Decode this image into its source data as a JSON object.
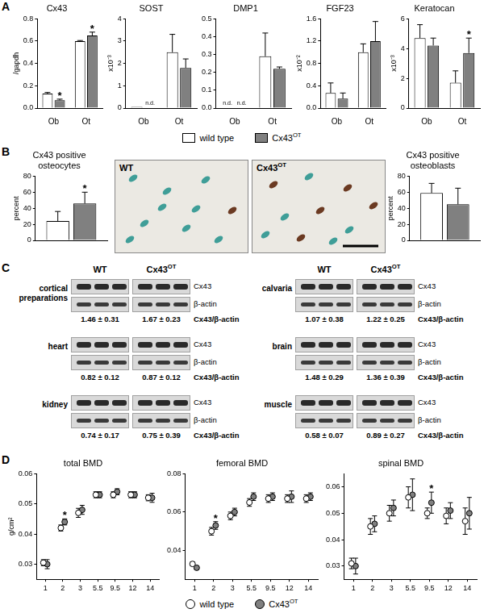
{
  "panel_labels": [
    "A",
    "B",
    "C",
    "D"
  ],
  "chart_data": [
    {
      "type": "bar",
      "title": "Cx43",
      "ylabel": "/gapdh",
      "categories": [
        "Ob",
        "Ot"
      ],
      "series": [
        {
          "name": "wild type",
          "color": "#ffffff",
          "values": [
            0.13,
            0.6
          ],
          "errors": [
            0.01,
            0.005
          ]
        },
        {
          "name": "Cx43OT",
          "color": "#808080",
          "values": [
            0.07,
            0.65
          ],
          "errors": [
            0.01,
            0.03
          ]
        }
      ],
      "ylim": [
        0,
        0.8
      ],
      "yticks": [
        {
          "value": 0,
          "label": "0.0"
        },
        0.2,
        0.4,
        0.6,
        0.8
      ],
      "grid": false,
      "annotations": [
        {
          "text": "*",
          "category": "Ob",
          "series": "Cx43OT"
        },
        {
          "text": "*",
          "category": "Ot",
          "series": "Cx43OT"
        }
      ]
    },
    {
      "type": "bar",
      "title": "SOST",
      "ylabel": "x10⁻³",
      "categories": [
        "Ob",
        "Ot"
      ],
      "series": [
        {
          "name": "wild type",
          "color": "#ffffff",
          "values": [
            0.05,
            2.5
          ],
          "errors": [
            null,
            0.8
          ]
        },
        {
          "name": "Cx43OT",
          "color": "#808080",
          "values": [
            null,
            1.8
          ],
          "errors": [
            null,
            0.4
          ]
        }
      ],
      "ylim": [
        0,
        4
      ],
      "yticks": [
        0,
        1,
        2,
        3,
        4
      ],
      "grid": false,
      "annotations": [
        {
          "text": "n.d.",
          "category": "Ob",
          "series": "Cx43OT"
        }
      ]
    },
    {
      "type": "bar",
      "title": "DMP1",
      "categories": [
        "Ob",
        "Ot"
      ],
      "series": [
        {
          "name": "wild type",
          "color": "#ffffff",
          "values": [
            null,
            0.29
          ],
          "errors": [
            null,
            0.13
          ]
        },
        {
          "name": "Cx43OT",
          "color": "#808080",
          "values": [
            null,
            0.22
          ],
          "errors": [
            null,
            0.01
          ]
        }
      ],
      "ylim": [
        0,
        0.5
      ],
      "yticks": [
        {
          "value": 0,
          "label": "0.0"
        },
        0.1,
        0.2,
        0.3,
        0.4,
        0.5
      ],
      "grid": false,
      "annotations": [
        {
          "text": "n.d.",
          "category": "Ob",
          "series": "wild type"
        },
        {
          "text": "n.d.",
          "category": "Ob",
          "series": "Cx43OT"
        }
      ]
    },
    {
      "type": "bar",
      "title": "FGF23",
      "ylabel": "x10⁻²",
      "categories": [
        "Ob",
        "Ot"
      ],
      "series": [
        {
          "name": "wild type",
          "color": "#ffffff",
          "values": [
            0.27,
            1.0
          ],
          "errors": [
            0.18,
            0.15
          ]
        },
        {
          "name": "Cx43OT",
          "color": "#808080",
          "values": [
            0.17,
            1.2
          ],
          "errors": [
            0.1,
            0.35
          ]
        }
      ],
      "ylim": [
        0,
        1.6
      ],
      "yticks": [
        {
          "value": 0,
          "label": "0.0"
        },
        0.4,
        0.8,
        1.2,
        1.6
      ],
      "grid": false
    },
    {
      "type": "bar",
      "title": "Keratocan",
      "ylabel": "x10⁻³",
      "categories": [
        "Ob",
        "Ot"
      ],
      "series": [
        {
          "name": "wild type",
          "color": "#ffffff",
          "values": [
            4.7,
            1.7
          ],
          "errors": [
            0.9,
            0.8
          ]
        },
        {
          "name": "Cx43OT",
          "color": "#808080",
          "values": [
            4.2,
            3.7
          ],
          "errors": [
            0.5,
            1.0
          ]
        }
      ],
      "ylim": [
        0,
        6
      ],
      "yticks": [
        0,
        2,
        4,
        6
      ],
      "grid": false,
      "annotations": [
        {
          "text": "*",
          "category": "Ot",
          "series": "Cx43OT"
        }
      ]
    },
    {
      "type": "bar",
      "title": "Cx43 positive osteocytes",
      "ylabel": "percent",
      "categories": [
        null
      ],
      "series": [
        {
          "name": "wild type",
          "color": "#ffffff",
          "values": [
            24
          ],
          "errors": [
            12
          ]
        },
        {
          "name": "Cx43OT",
          "color": "#808080",
          "values": [
            46
          ],
          "errors": [
            14
          ]
        }
      ],
      "ylim": [
        0,
        80
      ],
      "yticks": [
        0,
        20,
        40,
        60,
        80
      ],
      "grid": false,
      "annotations": [
        {
          "text": "*",
          "category": null,
          "series": "Cx43OT"
        }
      ]
    },
    {
      "type": "bar",
      "title": "Cx43 positive osteoblasts",
      "ylabel": "percent",
      "categories": [
        null
      ],
      "series": [
        {
          "name": "wild type",
          "color": "#ffffff",
          "values": [
            59
          ],
          "errors": [
            12
          ]
        },
        {
          "name": "Cx43OT",
          "color": "#808080",
          "values": [
            45
          ],
          "errors": [
            20
          ]
        }
      ],
      "ylim": [
        0,
        80
      ],
      "yticks": [
        0,
        20,
        40,
        60,
        80
      ],
      "grid": false
    },
    {
      "type": "scatter",
      "title": "total BMD",
      "ylabel": "g/cm²",
      "marker": "circle",
      "categories": [
        "1",
        "2",
        "3",
        "5.5",
        "9.5",
        "12",
        "14"
      ],
      "series": [
        {
          "name": "wild type",
          "color": "#ffffff",
          "values": [
            0.0305,
            0.042,
            0.047,
            0.053,
            0.053,
            0.053,
            0.052
          ],
          "errors": [
            0.001,
            0.001,
            0.0015,
            0.001,
            0.001,
            0.001,
            0.001
          ]
        },
        {
          "name": "Cx43OT",
          "color": "#808080",
          "values": [
            0.03,
            0.044,
            0.048,
            0.053,
            0.054,
            0.053,
            0.052
          ],
          "errors": [
            0.0015,
            0.001,
            0.0015,
            0.001,
            0.001,
            0.001,
            0.0015
          ]
        }
      ],
      "ylim": [
        0.025,
        0.06
      ],
      "yticks": [
        0.03,
        0.04,
        0.05,
        0.06
      ],
      "grid": false,
      "annotations": [
        {
          "text": "*",
          "category": "2",
          "series": "Cx43OT"
        }
      ]
    },
    {
      "type": "scatter",
      "title": "femoral BMD",
      "marker": "circle",
      "categories": [
        "1",
        "2",
        "3",
        "5.5",
        "9.5",
        "12",
        "14"
      ],
      "series": [
        {
          "name": "wild type",
          "color": "#ffffff",
          "values": [
            0.033,
            0.05,
            0.058,
            0.065,
            0.067,
            0.067,
            0.067
          ],
          "errors": [
            0.001,
            0.002,
            0.002,
            0.002,
            0.002,
            0.002,
            0.002
          ]
        },
        {
          "name": "Cx43OT",
          "color": "#808080",
          "values": [
            0.031,
            0.053,
            0.06,
            0.068,
            0.068,
            0.068,
            0.068
          ],
          "errors": [
            0.001,
            0.002,
            0.002,
            0.002,
            0.002,
            0.003,
            0.002
          ]
        }
      ],
      "ylim": [
        0.025,
        0.08
      ],
      "yticks": [
        0.04,
        0.06,
        0.08
      ],
      "grid": false,
      "annotations": [
        {
          "text": "*",
          "category": "2",
          "series": "Cx43OT"
        }
      ]
    },
    {
      "type": "scatter",
      "title": "spinal BMD",
      "marker": "circle",
      "categories": [
        "1",
        "2",
        "3",
        "5.5",
        "9.5",
        "12",
        "14"
      ],
      "series": [
        {
          "name": "wild type",
          "color": "#ffffff",
          "values": [
            0.031,
            0.045,
            0.05,
            0.056,
            0.05,
            0.049,
            0.047
          ],
          "errors": [
            0.002,
            0.003,
            0.003,
            0.004,
            0.002,
            0.003,
            0.005
          ]
        },
        {
          "name": "Cx43OT",
          "color": "#808080",
          "values": [
            0.03,
            0.046,
            0.052,
            0.057,
            0.054,
            0.051,
            0.05
          ],
          "errors": [
            0.003,
            0.003,
            0.003,
            0.006,
            0.004,
            0.003,
            0.006
          ]
        }
      ],
      "ylim": [
        0.025,
        0.065
      ],
      "yticks": [
        0.03,
        0.04,
        0.05,
        0.06
      ],
      "grid": false,
      "annotations": [
        {
          "text": "*",
          "category": "9.5",
          "series": "Cx43OT"
        }
      ]
    }
  ],
  "micrographs": {
    "labels": [
      "WT",
      "Cx43OT"
    ]
  },
  "blots": {
    "headers": [
      "WT",
      "Cx43OT"
    ],
    "rows": [
      "Cx43",
      "β-actin"
    ],
    "ratio_label": "Cx43/β-actin",
    "left": [
      {
        "tissue": "cortical preparations",
        "ratios": [
          "1.46 ± 0.31",
          "1.67 ± 0.23"
        ]
      },
      {
        "tissue": "heart",
        "ratios": [
          "0.82 ± 0.12",
          "0.87 ± 0.12"
        ]
      },
      {
        "tissue": "kidney",
        "ratios": [
          "0.74 ± 0.17",
          "0.75 ± 0.39"
        ]
      }
    ],
    "right": [
      {
        "tissue": "calvaria",
        "ratios": [
          "1.07 ± 0.38",
          "1.22 ± 0.25"
        ]
      },
      {
        "tissue": "brain",
        "ratios": [
          "1.48 ± 0.29",
          "1.36 ± 0.39"
        ]
      },
      {
        "tissue": "muscle",
        "ratios": [
          "0.58 ± 0.07",
          "0.89 ± 0.27"
        ]
      }
    ]
  }
}
